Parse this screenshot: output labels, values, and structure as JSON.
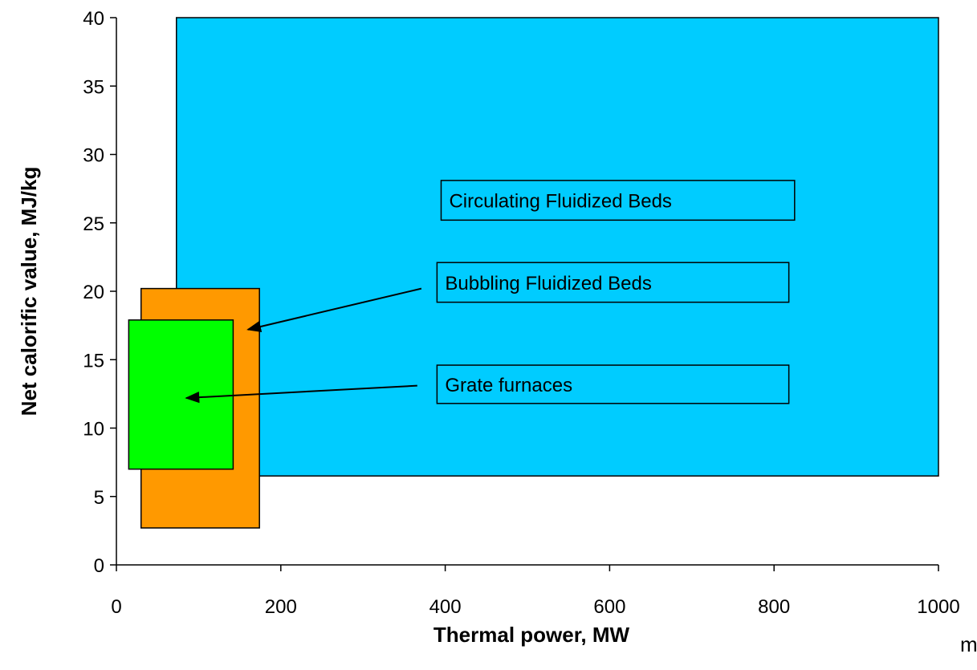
{
  "chart_data": {
    "type": "range-rectangles",
    "title": "",
    "xlabel": "Thermal power, MW",
    "ylabel": "Net calorific value, MJ/kg",
    "xlim": [
      0,
      1000
    ],
    "ylim": [
      0,
      40
    ],
    "xticks": [
      "0",
      "200",
      "400",
      "600",
      "800",
      "1000"
    ],
    "yticks": [
      "0",
      "5",
      "10",
      "15",
      "20",
      "25",
      "30",
      "35",
      "40"
    ],
    "grid": false,
    "regions": [
      {
        "key": "cfb",
        "label": "Circulating Fluidized Beds",
        "x": [
          73,
          1000
        ],
        "y": [
          6.5,
          40
        ],
        "color": "#00ccff"
      },
      {
        "key": "bfb",
        "label": "Bubbling Fluidized Beds",
        "x": [
          30,
          174
        ],
        "y": [
          2.7,
          20.2
        ],
        "color": "#ff9900"
      },
      {
        "key": "grate",
        "label": "Grate furnaces",
        "x": [
          15,
          142
        ],
        "y": [
          7,
          17.9
        ],
        "color": "#00ff00"
      }
    ],
    "annotations": [
      {
        "key": "cfb",
        "text": "Circulating Fluidized Beds",
        "box": {
          "x": [
            395,
            825
          ],
          "y": [
            25.2,
            28.1
          ]
        },
        "arrow": null
      },
      {
        "key": "bfb",
        "text": "Bubbling Fluidized Beds",
        "box": {
          "x": [
            390,
            818
          ],
          "y": [
            19.2,
            22.1
          ]
        },
        "arrow": {
          "from": [
            371,
            20.2
          ],
          "to": [
            160,
            17.2
          ]
        }
      },
      {
        "key": "grate",
        "text": "Grate furnaces",
        "box": {
          "x": [
            390,
            818
          ],
          "y": [
            11.8,
            14.6
          ]
        },
        "arrow": {
          "from": [
            366,
            13.1
          ],
          "to": [
            85,
            12.2
          ]
        }
      }
    ]
  },
  "stray_text": "m"
}
